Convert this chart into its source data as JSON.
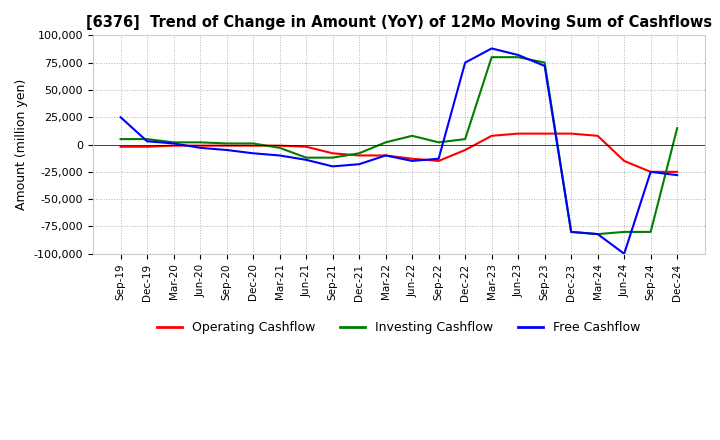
{
  "title": "[6376]  Trend of Change in Amount (YoY) of 12Mo Moving Sum of Cashflows",
  "ylabel": "Amount (million yen)",
  "ylim": [
    -100000,
    100000
  ],
  "yticks": [
    -100000,
    -75000,
    -50000,
    -25000,
    0,
    25000,
    50000,
    75000,
    100000
  ],
  "dates": [
    "Sep-19",
    "Dec-19",
    "Mar-20",
    "Jun-20",
    "Sep-20",
    "Dec-20",
    "Mar-21",
    "Jun-21",
    "Sep-21",
    "Dec-21",
    "Mar-22",
    "Jun-22",
    "Sep-22",
    "Dec-22",
    "Mar-23",
    "Jun-23",
    "Sep-23",
    "Dec-23",
    "Mar-24",
    "Jun-24",
    "Sep-24",
    "Dec-24"
  ],
  "operating": [
    -2000,
    -2000,
    -1000,
    -1000,
    -1000,
    -1000,
    -1000,
    -2000,
    -8000,
    -10000,
    -10000,
    -13000,
    -15000,
    -5000,
    8000,
    10000,
    10000,
    10000,
    8000,
    -15000,
    -25000,
    -25000
  ],
  "investing": [
    5000,
    5000,
    2000,
    2000,
    1000,
    1000,
    -3000,
    -12000,
    -12000,
    -8000,
    2000,
    8000,
    2000,
    5000,
    80000,
    80000,
    75000,
    -80000,
    -82000,
    -80000,
    -80000,
    15000
  ],
  "free": [
    25000,
    3000,
    1000,
    -3000,
    -5000,
    -8000,
    -10000,
    -14000,
    -20000,
    -18000,
    -10000,
    -15000,
    -13000,
    75000,
    88000,
    82000,
    72000,
    -80000,
    -82000,
    -100000,
    -25000,
    -28000
  ],
  "operating_color": "#ff0000",
  "investing_color": "#008000",
  "free_color": "#0000ff",
  "background_color": "#ffffff",
  "grid_color": "#aaaaaa"
}
